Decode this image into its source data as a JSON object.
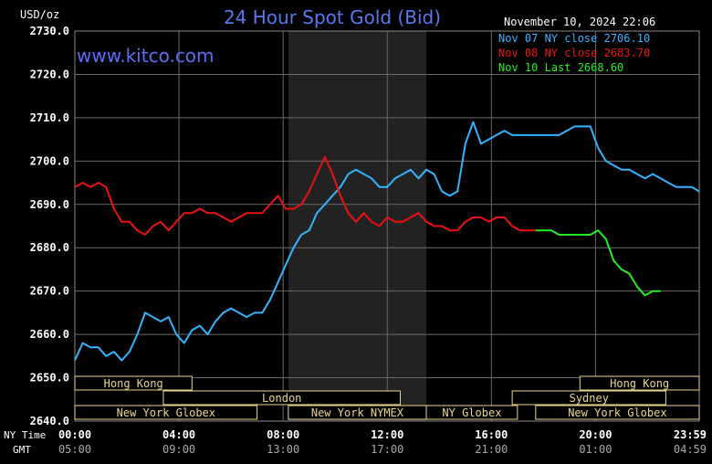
{
  "chart_data": {
    "type": "line",
    "title": "24 Hour Spot Gold (Bid)",
    "unit_label": "USD/oz",
    "watermark": "www.kitco.com",
    "timestamp": "November 10, 2024 22:06",
    "ylim": [
      2640,
      2730
    ],
    "yticks": [
      "2730.0",
      "2720.0",
      "2710.0",
      "2700.0",
      "2690.0",
      "2680.0",
      "2670.0",
      "2660.0",
      "2650.0",
      "2640.0"
    ],
    "x_hours": [
      0,
      23.983
    ],
    "xticks_ny": [
      "00:00",
      "04:00",
      "08:00",
      "12:00",
      "16:00",
      "20:00",
      "23:59"
    ],
    "xticks_gmt": [
      "05:00",
      "09:00",
      "13:00",
      "17:00",
      "21:00",
      "01:00",
      "04:59"
    ],
    "row_label_ny": "NY Time",
    "row_label_gmt": "GMT",
    "grid": true,
    "legend_position": "top-right",
    "colors": {
      "nov07": "#33b4ff",
      "nov08": "#ee1111",
      "nov10": "#22ee22",
      "title": "#5a78f0",
      "watermark": "#5a6ff5",
      "axis_text": "#ffffff",
      "grid": "#6a6a6a",
      "sessions_text": "#ead68a",
      "shade": "#222222"
    },
    "series": [
      {
        "name": "Nov 07 NY close 2706.10",
        "key": "nov07",
        "x": [
          0,
          0.3,
          0.6,
          0.9,
          1.2,
          1.5,
          1.8,
          2.1,
          2.4,
          2.7,
          3.0,
          3.3,
          3.6,
          3.9,
          4.2,
          4.5,
          4.8,
          5.1,
          5.4,
          5.7,
          6.0,
          6.3,
          6.6,
          6.9,
          7.2,
          7.5,
          7.8,
          8.1,
          8.4,
          8.7,
          9.0,
          9.3,
          9.6,
          9.9,
          10.2,
          10.5,
          10.8,
          11.1,
          11.4,
          11.7,
          12.0,
          12.3,
          12.6,
          12.9,
          13.2,
          13.5,
          13.8,
          14.1,
          14.4,
          14.7,
          15.0,
          15.3,
          15.6,
          15.9,
          16.2,
          16.5,
          16.8,
          17.1,
          17.4,
          17.7,
          18.0,
          18.3,
          18.6,
          18.9,
          19.2,
          19.5,
          19.8,
          20.1,
          20.4,
          20.7,
          21.0,
          21.3,
          21.6,
          21.9,
          22.2,
          22.5,
          22.8,
          23.1,
          23.4,
          23.7,
          23.98
        ],
        "values": [
          2654,
          2658,
          2657,
          2657,
          2655,
          2656,
          2654,
          2656,
          2660,
          2665,
          2664,
          2663,
          2664,
          2660,
          2658,
          2661,
          2662,
          2660,
          2663,
          2665,
          2666,
          2665,
          2664,
          2665,
          2665,
          2668,
          2672,
          2676,
          2680,
          2683,
          2684,
          2688,
          2690,
          2692,
          2694,
          2697,
          2698,
          2697,
          2696,
          2694,
          2694,
          2696,
          2697,
          2698,
          2696,
          2698,
          2697,
          2693,
          2692,
          2693,
          2704,
          2709,
          2704,
          2705,
          2706,
          2707,
          2706,
          2706,
          2706,
          2706,
          2706,
          2706,
          2706,
          2707,
          2708,
          2708,
          2708,
          2703,
          2700,
          2699,
          2698,
          2698,
          2697,
          2696,
          2697,
          2696,
          2695,
          2694,
          2694,
          2694,
          2693
        ]
      },
      {
        "name": "Nov 08 NY close 2683.70",
        "key": "nov08",
        "x": [
          0,
          0.3,
          0.6,
          0.9,
          1.2,
          1.5,
          1.8,
          2.1,
          2.4,
          2.7,
          3.0,
          3.3,
          3.6,
          3.9,
          4.2,
          4.5,
          4.8,
          5.1,
          5.4,
          5.7,
          6.0,
          6.3,
          6.6,
          6.9,
          7.2,
          7.5,
          7.8,
          8.1,
          8.4,
          8.7,
          9.0,
          9.3,
          9.6,
          9.9,
          10.2,
          10.5,
          10.8,
          11.1,
          11.4,
          11.7,
          12.0,
          12.3,
          12.6,
          12.9,
          13.2,
          13.5,
          13.8,
          14.1,
          14.4,
          14.7,
          15.0,
          15.3,
          15.6,
          15.9,
          16.2,
          16.5,
          16.8,
          17.1,
          17.4,
          17.7
        ],
        "values": [
          2694,
          2695,
          2694,
          2695,
          2694,
          2689,
          2686,
          2686,
          2684,
          2683,
          2685,
          2686,
          2684,
          2686,
          2688,
          2688,
          2689,
          2688,
          2688,
          2687,
          2686,
          2687,
          2688,
          2688,
          2688,
          2690,
          2692,
          2689,
          2689,
          2690,
          2693,
          2697,
          2701,
          2697,
          2692,
          2688,
          2686,
          2688,
          2686,
          2685,
          2687,
          2686,
          2686,
          2687,
          2688,
          2686,
          2685,
          2685,
          2684,
          2684,
          2686,
          2687,
          2687,
          2686,
          2687,
          2687,
          2685,
          2684,
          2684,
          2684
        ]
      },
      {
        "name": "Nov 10 Last 2668.60",
        "key": "nov10",
        "x": [
          17.7,
          18.0,
          18.3,
          18.6,
          18.9,
          19.2,
          19.5,
          19.8,
          20.1,
          20.4,
          20.7,
          21.0,
          21.3,
          21.6,
          21.9,
          22.2,
          22.5
        ],
        "values": [
          2684,
          2684,
          2684,
          2683,
          2683,
          2683,
          2683,
          2683,
          2684,
          2682,
          2677,
          2675,
          2674,
          2671,
          2669,
          2670,
          2670
        ]
      }
    ],
    "sessions": [
      {
        "label": "Hong Kong",
        "row": 0,
        "start": 0,
        "end": 4.5
      },
      {
        "label": "Hong Kong",
        "row": 0,
        "start": 19.4,
        "end": 23.983
      },
      {
        "label": "London",
        "row": 1,
        "start": 3.4,
        "end": 12.5
      },
      {
        "label": "Sydney",
        "row": 1,
        "start": 16.8,
        "end": 22.7
      },
      {
        "label": "New York Globex",
        "row": 2,
        "start": 0,
        "end": 7.0
      },
      {
        "label": "New York NYMEX",
        "row": 2,
        "start": 8.2,
        "end": 13.5
      },
      {
        "label": "NY Globex",
        "row": 2,
        "start": 13.5,
        "end": 17.0
      },
      {
        "label": "New York Globex",
        "row": 2,
        "start": 17.7,
        "end": 23.983
      }
    ],
    "shaded_hours": [
      8.2,
      13.5
    ]
  }
}
